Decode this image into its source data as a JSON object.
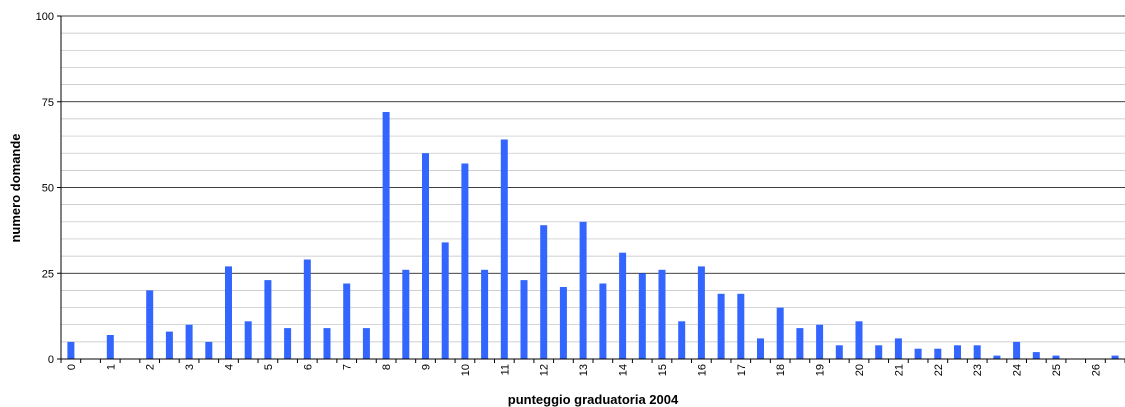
{
  "chart_data": {
    "type": "bar",
    "xlabel": "punteggio graduatoria 2004",
    "ylabel": "numero domande",
    "ylim": [
      0,
      100
    ],
    "y_ticks": [
      "0",
      "25",
      "50",
      "75",
      "100"
    ],
    "y_minor_step": 5,
    "x_tick_labels": [
      "0",
      "1",
      "2",
      "3",
      "4",
      "5",
      "6",
      "7",
      "8",
      "9",
      "10",
      "11",
      "12",
      "13",
      "14",
      "15",
      "16",
      "17",
      "18",
      "19",
      "20",
      "21",
      "22",
      "23",
      "24",
      "25",
      "26"
    ],
    "x_step": 0.5,
    "grid": true,
    "legend": "none",
    "bar_color": "#3366ff",
    "values": [
      5,
      0,
      7,
      0,
      20,
      8,
      10,
      5,
      27,
      11,
      23,
      9,
      29,
      9,
      22,
      9,
      72,
      26,
      60,
      34,
      57,
      26,
      64,
      23,
      39,
      21,
      40,
      22,
      31,
      25,
      26,
      11,
      27,
      19,
      19,
      6,
      15,
      9,
      10,
      4,
      11,
      4,
      6,
      3,
      3,
      4,
      4,
      1,
      5,
      2,
      1,
      0,
      0,
      1
    ]
  }
}
